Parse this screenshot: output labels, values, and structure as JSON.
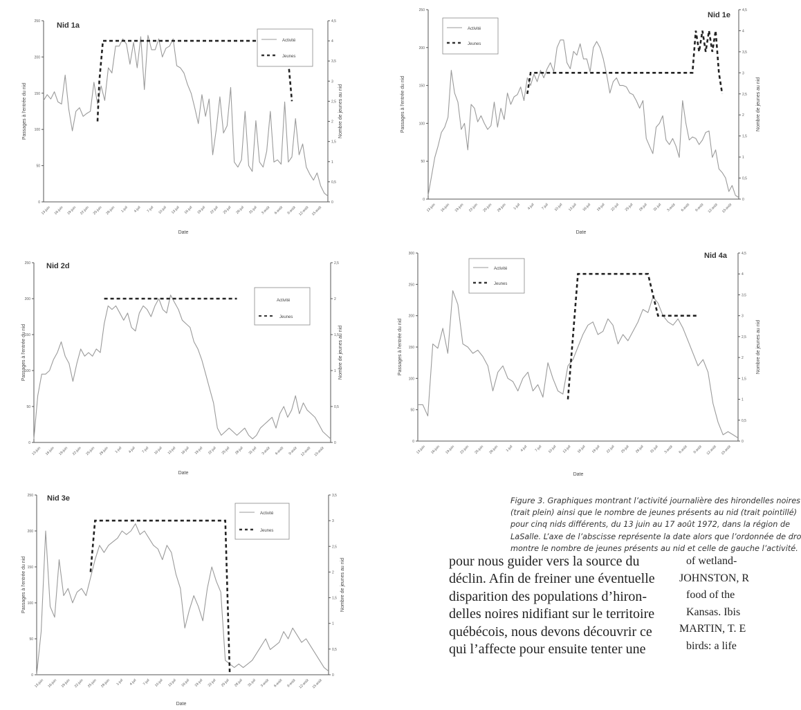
{
  "charts": [
    {
      "id": "c1",
      "title": "Nid 1a",
      "xlabel": "Date",
      "ylabel": "Passages à l'entrée du nid",
      "ylabel2": "Nombre de jeunes au nid",
      "legend": [
        "Activité",
        "Jeunes"
      ],
      "legend_placement": "top-right"
    },
    {
      "id": "c2",
      "title": "Nid 1e",
      "xlabel": "Date",
      "ylabel": "Passages à l'entrée du nid",
      "ylabel2": "Nombre de jeunes au nid",
      "legend": [
        "Activité",
        "Jeunes"
      ],
      "legend_placement": "top-left"
    },
    {
      "id": "c3",
      "title": "Nid 2d",
      "xlabel": "Date",
      "ylabel": "Passages à l'entrée du nid",
      "ylabel2": "Nombre de jeunes au nid",
      "legend": [
        "Activité",
        "Jeunes"
      ],
      "legend_placement": "top-right"
    },
    {
      "id": "c4",
      "title": "Nid 4a",
      "xlabel": "Date",
      "ylabel": "Passages à l'entrée du nid",
      "ylabel2": "Nombre de jeunes au nid",
      "legend": [
        "Activité",
        "Jeunes"
      ],
      "legend_placement": "top-left"
    },
    {
      "id": "c5",
      "title": "Nid 3e",
      "xlabel": "Date",
      "ylabel": "Passages à l'entrée du nid",
      "ylabel2": "Nombre de jeunes au nid",
      "legend": [
        "Activité",
        "Jeunes"
      ],
      "legend_placement": "top-right"
    }
  ],
  "chart_data": [
    {
      "type": "line",
      "title": "Nid 1a",
      "xlabel": "Date",
      "ylabel": "Passages à l'entrée du nid",
      "y2label": "Nombre de jeunes au nid",
      "x_ticks": [
        "13-juin",
        "16-juin",
        "19-juin",
        "22-juin",
        "25-juin",
        "28-juin",
        "1-juil",
        "4-juil",
        "7-juil",
        "10-juil",
        "13-juil",
        "16-juil",
        "19-juil",
        "22-juil",
        "25-juil",
        "28-juil",
        "31-juil",
        "3-août",
        "6-août",
        "9-août",
        "12-août",
        "15-août"
      ],
      "ylim": [
        0,
        250
      ],
      "yticks": [
        0,
        50,
        100,
        150,
        200,
        250
      ],
      "y2lim": [
        0,
        4.5
      ],
      "y2ticks": [
        0,
        0.5,
        1,
        1.5,
        2,
        2.5,
        3,
        3.5,
        4,
        4.5
      ],
      "grid": false,
      "legend_placement": "top-right",
      "series": [
        {
          "name": "Activité",
          "axis": "left",
          "style": "solid",
          "values": [
            140,
            148,
            142,
            152,
            138,
            135,
            175,
            128,
            98,
            125,
            130,
            118,
            122,
            125,
            165,
            135,
            160,
            140,
            185,
            178,
            215,
            215,
            225,
            218,
            190,
            220,
            185,
            228,
            155,
            230,
            210,
            210,
            225,
            200,
            212,
            215,
            225,
            188,
            185,
            178,
            162,
            150,
            130,
            108,
            148,
            118,
            142,
            65,
            100,
            145,
            95,
            105,
            158,
            55,
            48,
            58,
            125,
            50,
            42,
            112,
            55,
            48,
            70,
            125,
            55,
            58,
            52,
            138,
            55,
            62,
            115,
            65,
            80,
            48,
            38,
            30,
            40,
            22,
            12,
            8
          ]
        },
        {
          "name": "Jeunes",
          "axis": "right",
          "style": "dashed",
          "points": [
            [
              15,
              2
            ],
            [
              15.5,
              3
            ],
            [
              16.5,
              4
            ],
            [
              16.8,
              4
            ],
            [
              67.5,
              4
            ],
            [
              68,
              3.5
            ],
            [
              69,
              2.5
            ]
          ]
        }
      ]
    },
    {
      "type": "line",
      "title": "Nid 1e",
      "xlabel": "Date",
      "ylabel": "Passages à l'entrée du nid",
      "y2label": "Nombre de jeunes au nid",
      "x_ticks": [
        "13-juin",
        "16-juin",
        "19-juin",
        "22-juin",
        "25-juin",
        "28-juin",
        "1-juil",
        "4-juil",
        "7-juil",
        "10-juil",
        "13-juil",
        "16-juil",
        "19-juil",
        "22-juil",
        "25-juil",
        "28-juil",
        "31-juil",
        "3-août",
        "6-août",
        "9-août",
        "12-août",
        "15-août"
      ],
      "ylim": [
        0,
        250
      ],
      "yticks": [
        0,
        50,
        100,
        150,
        200,
        250
      ],
      "y2lim": [
        0,
        4.5
      ],
      "y2ticks": [
        0,
        0.5,
        1,
        1.5,
        2,
        2.5,
        3,
        3.5,
        4,
        4.5
      ],
      "grid": false,
      "legend_placement": "top-left",
      "series": [
        {
          "name": "Activité",
          "axis": "left",
          "style": "solid",
          "values": [
            5,
            30,
            55,
            70,
            88,
            95,
            108,
            170,
            140,
            128,
            92,
            100,
            65,
            125,
            120,
            102,
            110,
            100,
            92,
            97,
            128,
            95,
            120,
            105,
            140,
            125,
            135,
            138,
            148,
            130,
            160,
            150,
            165,
            155,
            170,
            160,
            172,
            180,
            168,
            200,
            210,
            210,
            180,
            172,
            195,
            190,
            205,
            185,
            185,
            168,
            200,
            208,
            200,
            185,
            165,
            140,
            155,
            160,
            150,
            150,
            148,
            140,
            138,
            130,
            120,
            130,
            80,
            70,
            60,
            95,
            100,
            110,
            78,
            72,
            80,
            70,
            55,
            130,
            100,
            78,
            82,
            80,
            72,
            78,
            88,
            90,
            55,
            65,
            40,
            35,
            28,
            10,
            18,
            5,
            2
          ]
        },
        {
          "name": "Jeunes",
          "axis": "right",
          "style": "dashed",
          "points": [
            [
              30,
              2.5
            ],
            [
              31,
              3
            ],
            [
              80,
              3
            ],
            [
              81,
              4
            ],
            [
              82,
              3.5
            ],
            [
              83,
              4
            ],
            [
              84,
              3.5
            ],
            [
              85,
              4
            ],
            [
              86,
              3.5
            ],
            [
              87,
              4
            ],
            [
              88,
              3
            ],
            [
              89,
              2.5
            ]
          ]
        }
      ]
    },
    {
      "type": "line",
      "title": "Nid 2d",
      "xlabel": "Date",
      "ylabel": "Passages à l'entrée du nid",
      "y2label": "Nombre de jeunes au nid",
      "x_ticks": [
        "13-juin",
        "16-juin",
        "19-juin",
        "22-juin",
        "25-juin",
        "28-juin",
        "1-juil",
        "4-juil",
        "7-juil",
        "10-juil",
        "13-juil",
        "16-juil",
        "19-juil",
        "22-juil",
        "25-juil",
        "28-juil",
        "31-juil",
        "3-août",
        "6-août",
        "9-août",
        "12-août",
        "15-août"
      ],
      "ylim": [
        0,
        250
      ],
      "yticks": [
        0,
        50,
        100,
        150,
        200,
        250
      ],
      "y2lim": [
        0,
        2.5
      ],
      "y2ticks": [
        0,
        0.5,
        1,
        1.5,
        2,
        2.5
      ],
      "grid": false,
      "legend_placement": "top-right",
      "series": [
        {
          "name": "Activité",
          "axis": "left",
          "style": "solid",
          "values": [
            5,
            65,
            95,
            95,
            100,
            115,
            125,
            140,
            120,
            110,
            85,
            110,
            130,
            120,
            125,
            120,
            130,
            125,
            165,
            190,
            185,
            190,
            180,
            170,
            180,
            160,
            155,
            180,
            190,
            185,
            175,
            190,
            200,
            185,
            180,
            205,
            195,
            185,
            170,
            165,
            160,
            140,
            130,
            115,
            95,
            75,
            55,
            20,
            10,
            15,
            20,
            15,
            10,
            15,
            20,
            10,
            5,
            10,
            20,
            25,
            30,
            35,
            20,
            40,
            50,
            35,
            45,
            65,
            40,
            55,
            45,
            40,
            35,
            25,
            15,
            10,
            5
          ]
        },
        {
          "name": "Jeunes",
          "axis": "right",
          "style": "dashed",
          "points": [
            [
              18,
              2
            ],
            [
              52,
              2
            ]
          ]
        }
      ]
    },
    {
      "type": "line",
      "title": "Nid 4a",
      "xlabel": "Date",
      "ylabel": "Passages à l'entrée du nid",
      "y2label": "Nombre de jeunes au nid",
      "x_ticks": [
        "13-juin",
        "16-juin",
        "19-juin",
        "22-juin",
        "25-juin",
        "28-juin",
        "1-juil",
        "4-juil",
        "7-juil",
        "10-juil",
        "13-juil",
        "16-juil",
        "19-juil",
        "22-juil",
        "25-juil",
        "28-juil",
        "31-juil",
        "3-août",
        "6-août",
        "9-août",
        "12-août",
        "15-août"
      ],
      "ylim": [
        0,
        300
      ],
      "yticks": [
        0,
        50,
        100,
        150,
        200,
        250,
        300
      ],
      "y2lim": [
        0,
        4.5
      ],
      "y2ticks": [
        0,
        0.5,
        1,
        1.5,
        2,
        2.5,
        3,
        3.5,
        4,
        4.5
      ],
      "grid": false,
      "legend_placement": "top-left",
      "series": [
        {
          "name": "Activité",
          "axis": "left",
          "style": "solid",
          "values": [
            58,
            58,
            40,
            155,
            148,
            180,
            140,
            240,
            218,
            155,
            150,
            140,
            145,
            135,
            120,
            80,
            110,
            120,
            100,
            95,
            80,
            100,
            110,
            80,
            90,
            70,
            125,
            100,
            80,
            75,
            120,
            130,
            150,
            170,
            185,
            190,
            170,
            175,
            195,
            185,
            155,
            170,
            160,
            175,
            190,
            210,
            205,
            230,
            220,
            200,
            190,
            185,
            195,
            180,
            160,
            140,
            120,
            130,
            110,
            60,
            30,
            10,
            15,
            10,
            5
          ]
        },
        {
          "name": "Jeunes",
          "axis": "right",
          "style": "dashed",
          "points": [
            [
              30,
              1
            ],
            [
              31,
              2.5
            ],
            [
              32,
              4
            ],
            [
              46,
              4
            ],
            [
              47,
              3.5
            ],
            [
              48,
              3
            ],
            [
              56,
              3
            ]
          ]
        }
      ]
    },
    {
      "type": "line",
      "title": "Nid 3e",
      "xlabel": "Date",
      "ylabel": "Passages à l'entrée du nid",
      "y2label": "Nombre de jeunes au nid",
      "x_ticks": [
        "13-juin",
        "16-juin",
        "19-juin",
        "22-juin",
        "25-juin",
        "28-juin",
        "1-juil",
        "4-juil",
        "7-juil",
        "10-juil",
        "13-juil",
        "16-juil",
        "19-juil",
        "22-juil",
        "25-juil",
        "28-juil",
        "31-juil",
        "3-août",
        "6-août",
        "9-août",
        "12-août",
        "15-août"
      ],
      "ylim": [
        0,
        250
      ],
      "yticks": [
        0,
        50,
        100,
        150,
        200,
        250
      ],
      "y2lim": [
        0,
        3.5
      ],
      "y2ticks": [
        0,
        0.5,
        1,
        1.5,
        2,
        2.5,
        3,
        3.5
      ],
      "grid": false,
      "legend_placement": "top-right",
      "series": [
        {
          "name": "Activité",
          "axis": "left",
          "style": "solid",
          "values": [
            0,
            60,
            200,
            95,
            80,
            160,
            110,
            120,
            100,
            115,
            120,
            110,
            135,
            160,
            180,
            170,
            180,
            185,
            190,
            200,
            195,
            200,
            210,
            195,
            200,
            190,
            180,
            175,
            160,
            180,
            170,
            140,
            120,
            65,
            90,
            110,
            95,
            75,
            120,
            150,
            130,
            115,
            20,
            15,
            10,
            15,
            10,
            15,
            20,
            30,
            40,
            50,
            35,
            40,
            45,
            60,
            50,
            65,
            55,
            45,
            50,
            40,
            30,
            20,
            10,
            5
          ]
        },
        {
          "name": "Jeunes",
          "axis": "right",
          "style": "dashed",
          "points": [
            [
              12,
              2
            ],
            [
              13,
              3
            ],
            [
              14,
              3
            ],
            [
              42,
              3
            ],
            [
              43,
              0
            ]
          ]
        }
      ]
    }
  ],
  "caption": {
    "lines": [
      "Figure 3. Graphiques montrant l’activité journalière des hirondelles noires",
      "(trait plein) ainsi que le nombre de jeunes présents au nid (trait pointillé)",
      "pour cinq nids différents, du 13 juin au 17 août 1972, dans la région de",
      "LaSalle. L’axe de l’abscisse représente la date alors que l’ordonnée de dro",
      "montre le nombre de jeunes présents au nid et celle de gauche l’activité."
    ]
  },
  "body_text": {
    "lines": [
      "pour nous guider vers la source du",
      "déclin. Afin de freiner une éventuelle",
      "disparition des populations d’hiron-",
      "delles noires nidifiant sur le territoire",
      "québécois, nous devons découvrir ce",
      "qui l’affecte pour ensuite tenter une"
    ]
  },
  "references": {
    "lines": [
      "of wetland-",
      "JOHNSTON, R",
      "food of the",
      "Kansas. Ibis",
      "MARTIN, T. E",
      "birds: a life"
    ]
  }
}
